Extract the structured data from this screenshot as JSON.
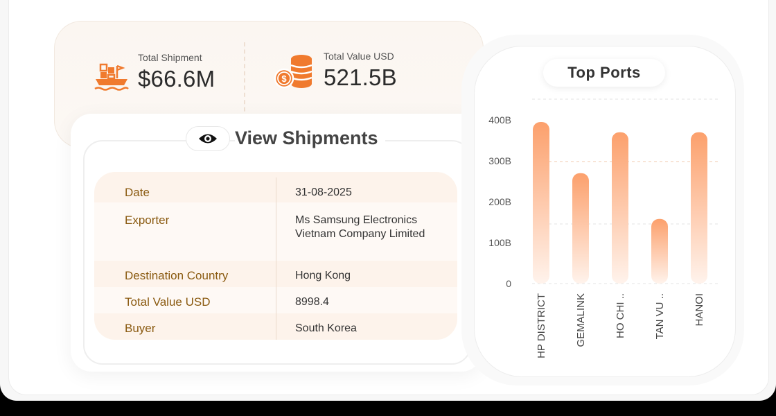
{
  "stats": [
    {
      "label": "Total Shipment",
      "value": "$66.6M",
      "icon": "cargo-ship-icon"
    },
    {
      "label": "Total Value USD",
      "value": "521.5B",
      "icon": "coin-stack-icon"
    }
  ],
  "shipments": {
    "title": "View Shipments",
    "icon": "eye-icon",
    "rows": [
      {
        "label": "Date",
        "value": "31-08-2025"
      },
      {
        "label": "Exporter",
        "value": "Ms Samsung Electronics Vietnam Company Limited"
      },
      {
        "label": "Destination Country",
        "value": "Hong Kong"
      },
      {
        "label": "Total Value USD",
        "value": "8998.4"
      },
      {
        "label": "Buyer",
        "value": "South Korea"
      }
    ]
  },
  "ports": {
    "title": "Top Ports"
  },
  "colors": {
    "accent": "#f07a2e",
    "label_brown": "#8a5a10",
    "bar_top": "#fca06c",
    "bar_bottom": "#fff3ec"
  },
  "chart_data": {
    "type": "bar",
    "title": "Top Ports",
    "categories": [
      "HP DISTRICT",
      "GEMALINK",
      "HO CHI ..",
      "TAN VU ..",
      "HANOI"
    ],
    "values": [
      395,
      270,
      370,
      158,
      370
    ],
    "ylim": [
      0,
      400
    ],
    "yticks": [
      "0",
      "100B",
      "200B",
      "300B",
      "400B"
    ],
    "grid": true
  }
}
